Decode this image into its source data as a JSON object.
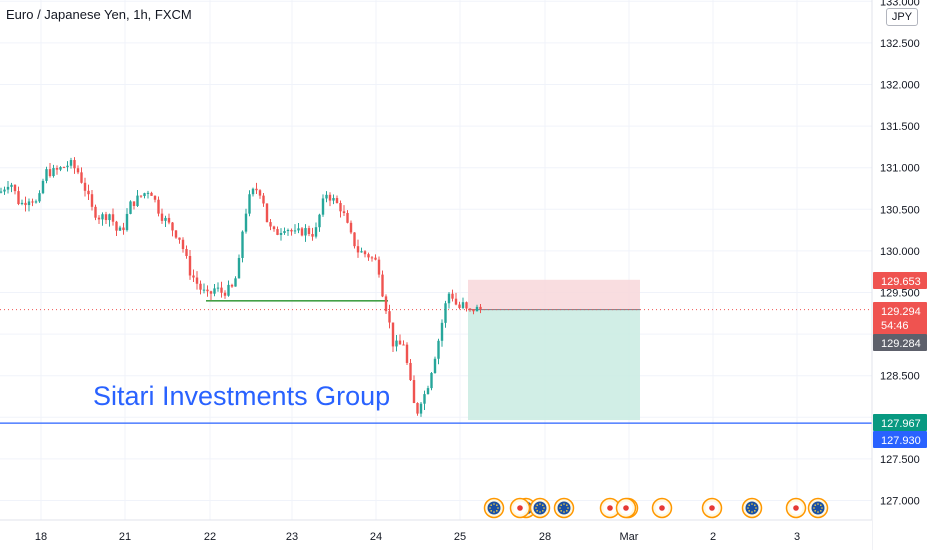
{
  "header": {
    "title": "Euro / Japanese Yen, 1h, FXCM"
  },
  "scale": {
    "currency": "JPY"
  },
  "watermark": "Sitari Investments Group",
  "colors": {
    "up": "#26a69a",
    "down": "#ef5350",
    "support_line": "#43a047",
    "level_line": "#2962ff",
    "position_stop": "#f8d7da",
    "position_target": "#c9ebe2"
  },
  "chart_data": {
    "type": "candlestick",
    "symbol": "Euro / Japanese Yen",
    "interval": "1h",
    "source": "FXCM",
    "ylim": [
      126.75,
      133.0
    ],
    "y_ticks": [
      "127.000",
      "127.500",
      "128.000",
      "128.500",
      "129.000",
      "129.500",
      "130.000",
      "130.500",
      "131.000",
      "131.500",
      "132.000",
      "132.500",
      "133.000"
    ],
    "x_ticks": [
      "18",
      "21",
      "22",
      "23",
      "24",
      "25",
      "28",
      "Mar",
      "2",
      "3"
    ],
    "price_labels": [
      {
        "value": "129.653",
        "style": "stop"
      },
      {
        "value": "129.294",
        "style": "last"
      },
      {
        "value": "54:46",
        "style": "countdown"
      },
      {
        "value": "129.284",
        "style": "prev"
      },
      {
        "value": "127.967",
        "style": "target"
      },
      {
        "value": "127.930",
        "style": "level"
      }
    ],
    "horizontal_levels": [
      {
        "price": 127.93,
        "color": "#2962ff"
      },
      {
        "price": 129.294,
        "color": "#ef5350",
        "dotted": true
      }
    ],
    "support_line": {
      "price": 129.4,
      "from": "22",
      "to": "24"
    },
    "short_position": {
      "entry": 129.294,
      "stop": 129.653,
      "target": 127.967,
      "from": "25",
      "to": "Mar"
    },
    "price_path": [
      [
        0,
        130.7
      ],
      [
        10,
        130.85
      ],
      [
        20,
        130.55
      ],
      [
        30,
        130.65
      ],
      [
        38,
        130.55
      ],
      [
        45,
        130.95
      ],
      [
        55,
        130.95
      ],
      [
        62,
        131.0
      ],
      [
        70,
        131.05
      ],
      [
        78,
        130.95
      ],
      [
        85,
        130.75
      ],
      [
        92,
        130.5
      ],
      [
        100,
        130.4
      ],
      [
        110,
        130.45
      ],
      [
        118,
        130.2
      ],
      [
        124,
        130.3
      ],
      [
        130,
        130.55
      ],
      [
        140,
        130.65
      ],
      [
        150,
        130.75
      ],
      [
        160,
        130.45
      ],
      [
        170,
        130.3
      ],
      [
        180,
        130.15
      ],
      [
        190,
        129.75
      ],
      [
        200,
        129.55
      ],
      [
        208,
        129.45
      ],
      [
        215,
        129.55
      ],
      [
        222,
        129.5
      ],
      [
        232,
        129.55
      ],
      [
        238,
        129.75
      ],
      [
        243,
        130.3
      ],
      [
        248,
        130.6
      ],
      [
        255,
        130.75
      ],
      [
        262,
        130.7
      ],
      [
        268,
        130.3
      ],
      [
        275,
        130.2
      ],
      [
        285,
        130.3
      ],
      [
        295,
        130.2
      ],
      [
        305,
        130.25
      ],
      [
        315,
        130.2
      ],
      [
        320,
        130.45
      ],
      [
        326,
        130.7
      ],
      [
        334,
        130.6
      ],
      [
        342,
        130.5
      ],
      [
        350,
        130.2
      ],
      [
        358,
        130.0
      ],
      [
        368,
        129.95
      ],
      [
        378,
        129.85
      ],
      [
        384,
        129.4
      ],
      [
        388,
        129.25
      ],
      [
        392,
        128.9
      ],
      [
        398,
        128.85
      ],
      [
        404,
        128.9
      ],
      [
        408,
        128.55
      ],
      [
        412,
        128.3
      ],
      [
        416,
        128.0
      ],
      [
        420,
        128.2
      ],
      [
        426,
        128.3
      ],
      [
        432,
        128.6
      ],
      [
        438,
        128.9
      ],
      [
        443,
        129.2
      ],
      [
        448,
        129.5
      ],
      [
        453,
        129.45
      ],
      [
        458,
        129.3
      ],
      [
        463,
        129.35
      ],
      [
        468,
        129.25
      ],
      [
        473,
        129.3
      ],
      [
        478,
        129.3
      ],
      [
        483,
        129.294
      ]
    ],
    "events": [
      {
        "type": "flag-eu"
      },
      {
        "type": "flag-eu"
      },
      {
        "type": "flag-eu"
      },
      {
        "type": "flag-eu"
      },
      {
        "type": "flag-jp"
      },
      {
        "type": "flag-eu"
      },
      {
        "type": "flag-jp"
      },
      {
        "type": "flag-jp"
      },
      {
        "type": "flag-eu"
      },
      {
        "type": "flag-jp"
      },
      {
        "type": "flag-eu"
      },
      {
        "type": "flag-jp"
      },
      {
        "type": "flag-jp"
      }
    ]
  }
}
